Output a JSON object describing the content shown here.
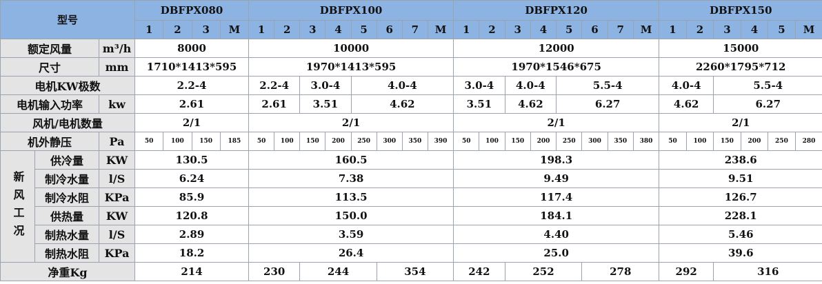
{
  "header": {
    "model_label": "型号",
    "models": [
      {
        "name": "DBFPX080",
        "columns": [
          "1",
          "2",
          "3",
          "M"
        ]
      },
      {
        "name": "DBFPX100",
        "columns": [
          "1",
          "2",
          "3",
          "4",
          "5",
          "6",
          "7",
          "M"
        ]
      },
      {
        "name": "DBFPX120",
        "columns": [
          "1",
          "2",
          "3",
          "4",
          "5",
          "6",
          "7",
          "M"
        ]
      },
      {
        "name": "DBFPX150",
        "columns": [
          "1",
          "2",
          "3",
          "4",
          "5",
          "M"
        ]
      }
    ]
  },
  "rows": [
    {
      "label": "额定风量",
      "unit": "m³/h",
      "values": [
        "8000",
        "10000",
        "12000",
        "15000"
      ]
    },
    {
      "label": "尺寸",
      "unit": "mm",
      "values": [
        "1710*1413*595",
        "1970*1413*595",
        "1970*1546*675",
        "2260*1795*712"
      ]
    },
    {
      "label": "电机KW极数",
      "values": [
        "2.2-4",
        "2.2-4",
        "3.0-4",
        "4.0-4",
        "3.0-4",
        "4.0-4",
        "5.5-4",
        "4.0-4",
        "5.5-4"
      ]
    },
    {
      "label": "电机输入功率",
      "unit": "kw",
      "values": [
        "2.61",
        "2.61",
        "3.51",
        "4.62",
        "3.51",
        "4.62",
        "6.27",
        "4.62",
        "6.27"
      ]
    },
    {
      "label": "风机/电机数量",
      "values": [
        "2/1",
        "2/1",
        "2/1",
        "2/1"
      ]
    },
    {
      "label": "机外静压",
      "unit": "Pa",
      "values": [
        "50",
        "100",
        "150",
        "185",
        "50",
        "100",
        "150",
        "200",
        "250",
        "300",
        "350",
        "390",
        "50",
        "100",
        "150",
        "200",
        "250",
        "300",
        "350",
        "380",
        "50",
        "100",
        "150",
        "200",
        "250",
        "280"
      ]
    }
  ],
  "fresh_air": {
    "label": "新风工况",
    "rows": [
      {
        "label": "供冷量",
        "unit": "KW",
        "values": [
          "130.5",
          "160.5",
          "198.3",
          "238.6"
        ]
      },
      {
        "label": "制冷水量",
        "unit": "l/S",
        "values": [
          "6.24",
          "7.38",
          "9.49",
          "9.51"
        ]
      },
      {
        "label": "制冷水阻",
        "unit": "KPa",
        "values": [
          "85.9",
          "113.5",
          "117.4",
          "126.7"
        ]
      },
      {
        "label": "供热量",
        "unit": "KW",
        "values": [
          "120.8",
          "150.0",
          "184.1",
          "228.1"
        ]
      },
      {
        "label": "制热水量",
        "unit": "l/S",
        "values": [
          "2.89",
          "3.59",
          "4.40",
          "5.46"
        ]
      },
      {
        "label": "制热水阻",
        "unit": "KPa",
        "values": [
          "18.2",
          "26.4",
          "25.0",
          "39.6"
        ]
      }
    ]
  },
  "net_weight": {
    "label": "净重Kg",
    "values": [
      "214",
      "230",
      "244",
      "354",
      "242",
      "252",
      "278",
      "292",
      "316"
    ]
  }
}
